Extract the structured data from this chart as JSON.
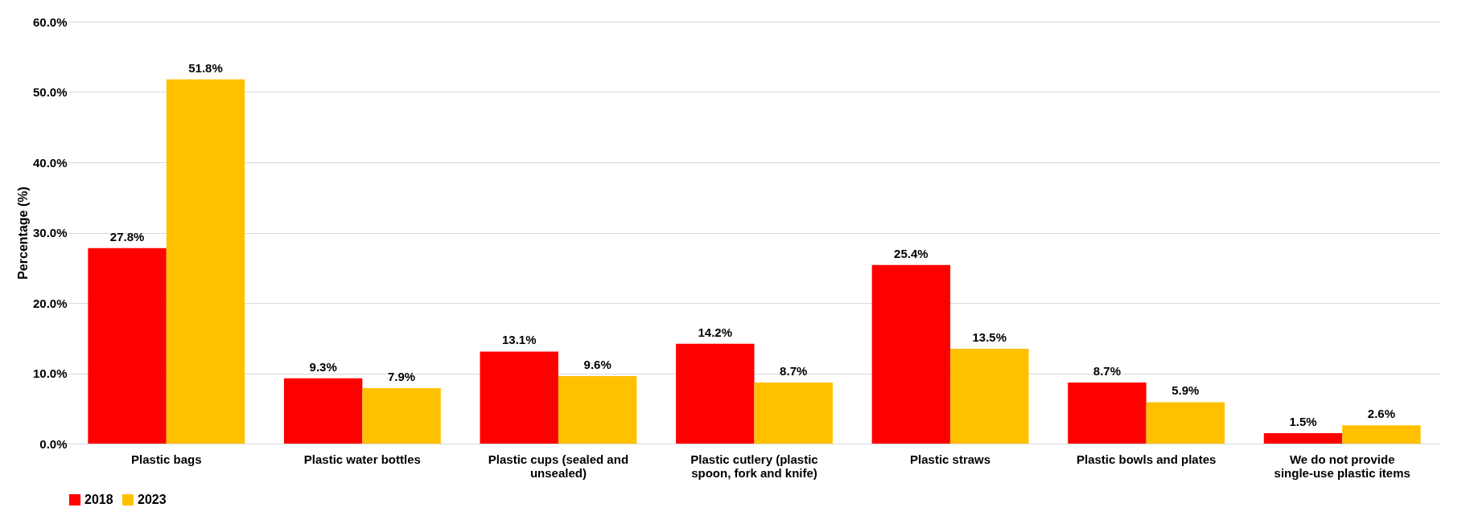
{
  "chart_data": {
    "type": "bar",
    "ylabel": "Percentage (%)",
    "categories": [
      "Plastic bags",
      "Plastic water bottles",
      "Plastic cups (sealed and unsealed)",
      "Plastic cutlery (plastic spoon, fork and knife)",
      "Plastic straws",
      "Plastic bowls and plates",
      "We do not provide single-use plastic items"
    ],
    "series": [
      {
        "name": "2018",
        "color": "#ff0000",
        "values": [
          27.8,
          9.3,
          13.1,
          14.2,
          25.4,
          8.7,
          1.5
        ],
        "value_labels": [
          "27.8%",
          "9.3%",
          "13.1%",
          "14.2%",
          "25.4%",
          "8.7%",
          "1.5%"
        ]
      },
      {
        "name": "2023",
        "color": "#ffc000",
        "values": [
          51.8,
          7.9,
          9.6,
          8.7,
          13.5,
          5.9,
          2.6
        ],
        "value_labels": [
          "51.8%",
          "7.9%",
          "9.6%",
          "8.7%",
          "13.5%",
          "5.9%",
          "2.6%"
        ]
      }
    ],
    "ylim": [
      0,
      60
    ],
    "yticks": [
      {
        "value": 0,
        "label": "0.0%"
      },
      {
        "value": 10,
        "label": "10.0%"
      },
      {
        "value": 20,
        "label": "20.0%"
      },
      {
        "value": 30,
        "label": "30.0%"
      },
      {
        "value": 40,
        "label": "40.0%"
      },
      {
        "value": 50,
        "label": "50.0%"
      },
      {
        "value": 60,
        "label": "60.0%"
      }
    ],
    "grid": "y",
    "legend": "bottom"
  }
}
